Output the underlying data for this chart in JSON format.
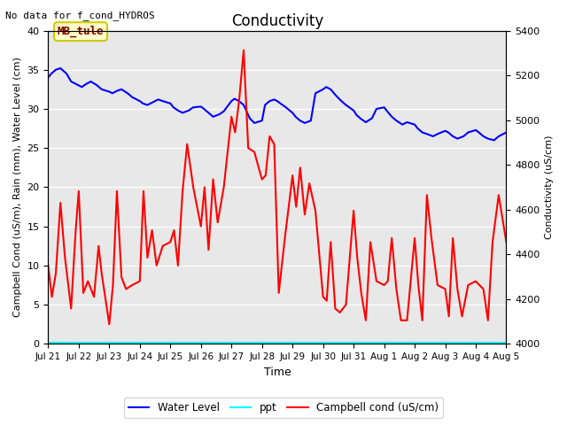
{
  "title": "Conductivity",
  "top_left_text": "No data for f_cond_HYDROS",
  "xlabel": "Time",
  "ylabel_left": "Campbell Cond (uS/m), Rain (mm), Water Level (cm)",
  "ylabel_right": "Conductivity (uS/cm)",
  "ylim_left": [
    0,
    40
  ],
  "ylim_right": [
    4000,
    5400
  ],
  "background_color": "#e8e8e8",
  "box_label": "MB_tule",
  "box_bg": "#ffffcc",
  "box_edge": "#cccc00",
  "xtick_labels": [
    "Jul 21",
    "Jul 22",
    "Jul 23",
    "Jul 24",
    "Jul 25",
    "Jul 26",
    "Jul 27",
    "Jul 28",
    "Jul 29",
    "Jul 30",
    "Jul 31",
    "Aug 1",
    "Aug 2",
    "Aug 3",
    "Aug 4",
    "Aug 5"
  ],
  "yticks_left": [
    0,
    5,
    10,
    15,
    20,
    25,
    30,
    35,
    40
  ],
  "yticks_right": [
    4000,
    4200,
    4400,
    4600,
    4800,
    5000,
    5200,
    5400
  ],
  "water_level_x": [
    0.0,
    0.1,
    0.25,
    0.4,
    0.6,
    0.75,
    1.0,
    1.1,
    1.25,
    1.4,
    1.6,
    1.75,
    2.0,
    2.1,
    2.25,
    2.4,
    2.6,
    2.75,
    3.0,
    3.1,
    3.25,
    3.4,
    3.6,
    3.75,
    4.0,
    4.1,
    4.25,
    4.4,
    4.6,
    4.75,
    5.0,
    5.1,
    5.25,
    5.4,
    5.6,
    5.75,
    6.0,
    6.1,
    6.25,
    6.4,
    6.6,
    6.75,
    7.0,
    7.1,
    7.25,
    7.4,
    7.5,
    7.6,
    7.75,
    8.0,
    8.1,
    8.25,
    8.4,
    8.6,
    8.75,
    9.0,
    9.1,
    9.25,
    9.4,
    9.6,
    9.75,
    10.0,
    10.1,
    10.25,
    10.4,
    10.6,
    10.75,
    11.0,
    11.1,
    11.25,
    11.4,
    11.6,
    11.75,
    12.0,
    12.1,
    12.25,
    12.4,
    12.6,
    12.75,
    13.0,
    13.1,
    13.25,
    13.4,
    13.6,
    13.75,
    14.0,
    14.1,
    14.25,
    14.4,
    14.6,
    14.75,
    15.0
  ],
  "water_level_y": [
    34.0,
    34.5,
    35.0,
    35.2,
    34.5,
    33.5,
    33.0,
    32.8,
    33.2,
    33.5,
    33.0,
    32.5,
    32.2,
    32.0,
    32.3,
    32.5,
    32.0,
    31.5,
    31.0,
    30.7,
    30.5,
    30.8,
    31.2,
    31.0,
    30.7,
    30.2,
    29.8,
    29.5,
    29.8,
    30.2,
    30.3,
    30.0,
    29.5,
    29.0,
    29.3,
    29.7,
    31.0,
    31.3,
    31.0,
    30.5,
    28.8,
    28.2,
    28.5,
    30.5,
    31.0,
    31.2,
    31.0,
    30.7,
    30.3,
    29.5,
    29.0,
    28.5,
    28.2,
    28.5,
    32.0,
    32.5,
    32.8,
    32.5,
    31.8,
    31.0,
    30.5,
    29.8,
    29.2,
    28.7,
    28.3,
    28.8,
    30.0,
    30.2,
    29.7,
    29.0,
    28.5,
    28.0,
    28.3,
    28.0,
    27.5,
    27.0,
    26.8,
    26.5,
    26.8,
    27.2,
    27.0,
    26.5,
    26.2,
    26.5,
    27.0,
    27.3,
    27.0,
    26.5,
    26.2,
    26.0,
    26.5,
    27.0
  ],
  "campbell_x": [
    0.0,
    0.12,
    0.25,
    0.4,
    0.55,
    0.75,
    0.9,
    1.0,
    1.15,
    1.3,
    1.5,
    1.65,
    1.75,
    2.0,
    2.12,
    2.25,
    2.4,
    2.55,
    2.75,
    3.0,
    3.12,
    3.25,
    3.4,
    3.55,
    3.75,
    4.0,
    4.12,
    4.25,
    4.4,
    4.55,
    4.75,
    5.0,
    5.12,
    5.25,
    5.4,
    5.55,
    5.75,
    6.0,
    6.12,
    6.25,
    6.4,
    6.55,
    6.75,
    7.0,
    7.12,
    7.25,
    7.4,
    7.55,
    7.75,
    8.0,
    8.12,
    8.25,
    8.4,
    8.55,
    8.75,
    9.0,
    9.12,
    9.25,
    9.4,
    9.55,
    9.75,
    10.0,
    10.12,
    10.25,
    10.4,
    10.55,
    10.75,
    11.0,
    11.12,
    11.25,
    11.4,
    11.55,
    11.75,
    12.0,
    12.12,
    12.25,
    12.4,
    12.55,
    12.75,
    13.0,
    13.12,
    13.25,
    13.4,
    13.55,
    13.75,
    14.0,
    14.12,
    14.25,
    14.4,
    14.55,
    14.75,
    15.0
  ],
  "campbell_y": [
    10.0,
    6.0,
    9.0,
    18.0,
    11.0,
    4.5,
    14.5,
    19.5,
    6.5,
    8.0,
    6.0,
    12.5,
    9.0,
    2.5,
    7.5,
    19.5,
    8.5,
    7.0,
    7.5,
    8.0,
    19.5,
    11.0,
    14.5,
    10.0,
    12.5,
    13.0,
    14.5,
    10.0,
    19.5,
    25.5,
    20.0,
    15.0,
    20.0,
    12.0,
    21.0,
    15.5,
    20.0,
    29.0,
    27.0,
    31.0,
    37.5,
    25.0,
    24.5,
    21.0,
    21.5,
    26.5,
    25.5,
    6.5,
    13.5,
    21.5,
    17.5,
    22.5,
    16.5,
    20.5,
    17.0,
    6.0,
    5.5,
    13.0,
    4.5,
    4.0,
    5.0,
    17.0,
    11.0,
    6.5,
    3.0,
    13.0,
    8.0,
    7.5,
    8.0,
    13.5,
    7.0,
    3.0,
    3.0,
    13.5,
    7.5,
    3.0,
    19.0,
    13.5,
    7.5,
    7.0,
    3.5,
    13.5,
    7.0,
    3.5,
    7.5,
    8.0,
    7.5,
    7.0,
    3.0,
    13.0,
    19.0,
    13.0
  ],
  "title_fontsize": 12,
  "label_fontsize": 8,
  "tick_fontsize": 8,
  "xtick_fontsize": 7.5
}
